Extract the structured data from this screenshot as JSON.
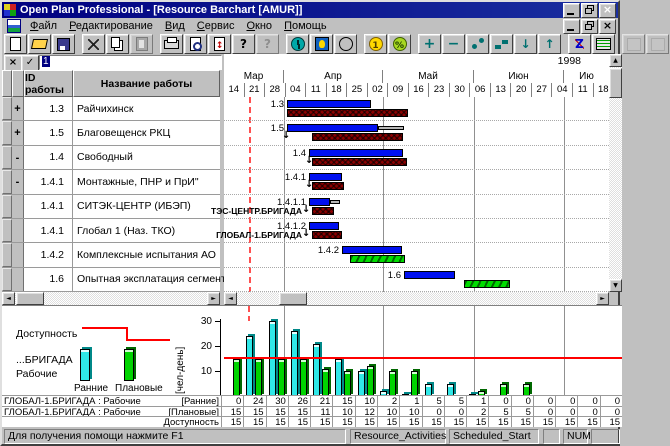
{
  "window": {
    "title": "Open Plan Professional - [Resource Barchart [AMUR]]"
  },
  "menu": {
    "items": [
      "Файл",
      "Редактирование",
      "Вид",
      "Сервис",
      "Окно",
      "Помощь"
    ]
  },
  "toolbar": {
    "groups": [
      [
        {
          "name": "new-icon"
        },
        {
          "name": "open-icon"
        },
        {
          "name": "save-icon"
        }
      ],
      [
        {
          "name": "cut-icon"
        },
        {
          "name": "copy-icon"
        },
        {
          "name": "paste-icon",
          "disabled": true
        }
      ],
      [
        {
          "name": "print-icon"
        },
        {
          "name": "print-preview-icon"
        },
        {
          "name": "goto-page-icon"
        },
        {
          "name": "help-icon"
        },
        {
          "name": "context-help-icon",
          "disabled": true
        }
      ],
      [
        {
          "name": "time-analysis-icon"
        },
        {
          "name": "resource-icon"
        },
        {
          "name": "histogram-icon"
        }
      ],
      [
        {
          "name": "cost-icon"
        },
        {
          "name": "percent-icon"
        }
      ],
      [
        {
          "name": "add-icon"
        },
        {
          "name": "remove-icon"
        },
        {
          "name": "link-activities-icon"
        },
        {
          "name": "step-activities-icon"
        },
        {
          "name": "move-down-icon"
        },
        {
          "name": "move-up-icon"
        }
      ],
      [
        {
          "name": "sort-icon"
        },
        {
          "name": "screen-icon"
        }
      ],
      [
        {
          "name": "blank-icon-1",
          "disabled": true
        },
        {
          "name": "blank-icon-2",
          "disabled": true
        }
      ]
    ]
  },
  "edit_bar": {
    "value": "1"
  },
  "timeline": {
    "year": "1998",
    "months": [
      "Мар",
      "Апр",
      "Май",
      "Июн",
      "Ию"
    ],
    "days": [
      "14",
      "21",
      "28",
      "04",
      "11",
      "18",
      "25",
      "02",
      "09",
      "16",
      "23",
      "30",
      "06",
      "13",
      "20",
      "27",
      "04",
      "11",
      "18"
    ]
  },
  "activity_table": {
    "id_header": "ID работы",
    "name_header": "Название работы",
    "rows": [
      {
        "marker": "+",
        "id": "1.3",
        "name": "Райчихинск"
      },
      {
        "marker": "+",
        "id": "1.5",
        "name": "Благовещенск РКЦ"
      },
      {
        "marker": "-",
        "id": "1.4",
        "name": "Свободный"
      },
      {
        "marker": "-",
        "id": "1.4.1",
        "name": "Монтажные, ПНР и ПрИ\""
      },
      {
        "marker": "",
        "id": "1.4.1",
        "name": "СИТЭК-ЦЕНТР (ИБЭП)"
      },
      {
        "marker": "",
        "id": "1.4.1",
        "name": "Глобал 1 (Наз. ТКО)"
      },
      {
        "marker": "",
        "id": "1.4.2",
        "name": "Комплексные испытания АО"
      },
      {
        "marker": "",
        "id": "1.6",
        "name": "Опытная эксплатация сегмента"
      }
    ]
  },
  "gantt": {
    "time_now_x": 25,
    "month_gridlines": [
      60,
      159,
      250,
      340
    ],
    "rows": [
      {
        "label": "1.3",
        "bars": [
          {
            "t": "early",
            "x1": 63,
            "x2": 147
          },
          {
            "t": "sched",
            "x1": 63,
            "x2": 184
          }
        ]
      },
      {
        "label": "1.5",
        "bars": [
          {
            "t": "early",
            "x1": 63,
            "x2": 154
          },
          {
            "t": "free",
            "x1": 154,
            "x2": 180
          },
          {
            "t": "arrow",
            "x": 58
          },
          {
            "t": "sched",
            "x1": 88,
            "x2": 179
          }
        ]
      },
      {
        "label": "1.4",
        "bars": [
          {
            "t": "early",
            "x1": 85,
            "x2": 179
          },
          {
            "t": "arrow",
            "x": 81
          },
          {
            "t": "sched",
            "x1": 88,
            "x2": 183
          }
        ]
      },
      {
        "label": "1.4.1",
        "bars": [
          {
            "t": "early",
            "x1": 85,
            "x2": 118
          },
          {
            "t": "arrow",
            "x": 81
          },
          {
            "t": "sched",
            "x1": 88,
            "x2": 120
          }
        ]
      },
      {
        "label": "1.4.1.1",
        "sub_label": "ТЭС-ЦЕНТР.БРИГАДА",
        "bars": [
          {
            "t": "early",
            "x1": 85,
            "x2": 106
          },
          {
            "t": "free",
            "x1": 106,
            "x2": 116
          },
          {
            "t": "arrow",
            "x": 78
          },
          {
            "t": "sched",
            "x1": 88,
            "x2": 110
          }
        ]
      },
      {
        "label": "1.4.1.2",
        "sub_label": "ГЛОБАЛ-1.БРИГАДА",
        "bars": [
          {
            "t": "early",
            "x1": 85,
            "x2": 115
          },
          {
            "t": "arrow",
            "x": 78
          },
          {
            "t": "sched",
            "x1": 88,
            "x2": 118
          }
        ]
      },
      {
        "label": "1.4.2",
        "bars": [
          {
            "t": "early",
            "x1": 118,
            "x2": 178
          },
          {
            "t": "actual",
            "x1": 126,
            "x2": 181
          }
        ]
      },
      {
        "label": "1.6",
        "bars": [
          {
            "t": "early",
            "x1": 180,
            "x2": 231
          },
          {
            "t": "actual",
            "x1": 240,
            "x2": 286
          }
        ]
      }
    ]
  },
  "histogram": {
    "unit_label": "[чел-день]",
    "yticks": [
      10,
      20,
      30
    ],
    "legend": {
      "availability": "Доступность",
      "resource": "...БРИГАДА",
      "workers": "Рабочие",
      "early": "Ранние",
      "planned": "Плановые"
    },
    "early_values": [
      0,
      24,
      30,
      26,
      21,
      15,
      10,
      2,
      1,
      5,
      5,
      1,
      0,
      0,
      0,
      0,
      0,
      0
    ],
    "planned_values": [
      15,
      15,
      15,
      15,
      11,
      10,
      12,
      10,
      10,
      0,
      0,
      2,
      5,
      5,
      0,
      0,
      0,
      0
    ],
    "availability_line": 15,
    "colors": {
      "early": "#30e8e8",
      "planned": "#00d400",
      "availability": "#ff0000",
      "early_bar_gantt": "#0010f0",
      "sched_bar": "#8c0000",
      "actual_bar": "#00dc00"
    }
  },
  "resource_table": {
    "rows": [
      {
        "label": "ГЛОБАЛ-1.БРИГАДА : Рабочие",
        "type": "[Ранние]",
        "values": [
          0,
          24,
          30,
          26,
          21,
          15,
          10,
          2,
          1,
          5,
          5,
          1,
          0,
          0,
          0,
          0,
          0,
          0
        ]
      },
      {
        "label": "ГЛОБАЛ-1.БРИГАДА : Рабочие",
        "type": "[Плановые]",
        "values": [
          15,
          15,
          15,
          15,
          11,
          10,
          12,
          10,
          10,
          0,
          0,
          2,
          5,
          5,
          0,
          0,
          0,
          0
        ]
      },
      {
        "label": "",
        "type": "Доступность",
        "values": [
          15,
          15,
          15,
          15,
          15,
          15,
          15,
          15,
          15,
          15,
          15,
          15,
          15,
          15,
          15,
          15,
          15,
          15
        ]
      }
    ]
  },
  "status_bar": {
    "help": "Для получения помощи нажмите F1",
    "view": "Resource_Activities",
    "field": "Scheduled_Start",
    "num": "NUM"
  }
}
